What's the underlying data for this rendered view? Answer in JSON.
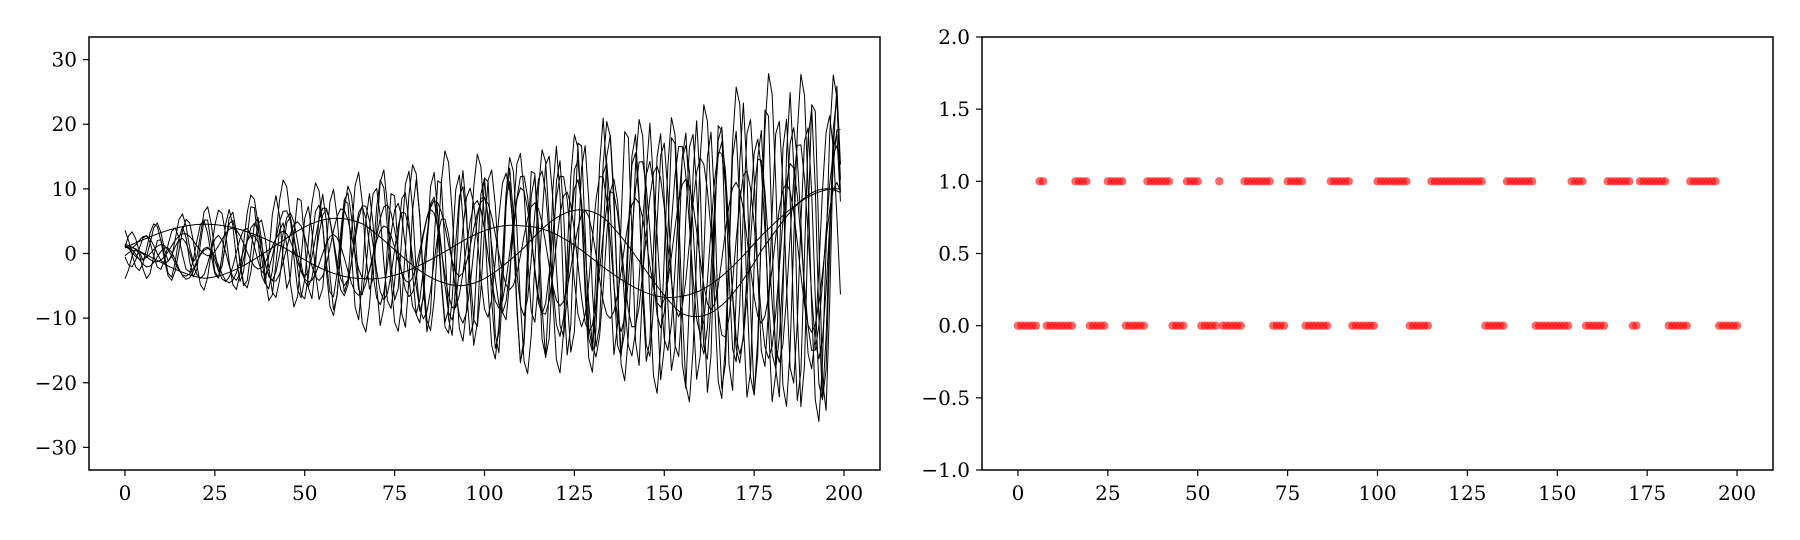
{
  "chart_data": [
    {
      "type": "line",
      "title": "",
      "xlabel": "",
      "ylabel": "",
      "xlim": [
        -10,
        210
      ],
      "ylim": [
        -33.5,
        33.5
      ],
      "xticks": [
        0,
        25,
        50,
        75,
        100,
        125,
        150,
        175,
        200
      ],
      "yticks": [
        30,
        20,
        10,
        0,
        -10,
        -20,
        -30
      ],
      "x_start": 0,
      "x_end": 199,
      "line_color": "#000000",
      "grid": false,
      "series": [
        {
          "amplitude_start": 2,
          "amplitude_end": 24,
          "period": 7.0,
          "phase": 0.0,
          "drift": [
            1,
            3,
            -2,
            4,
            1,
            -3,
            2,
            0,
            -2,
            1
          ]
        },
        {
          "amplitude_start": 1,
          "amplitude_end": 18,
          "period": 11.0,
          "phase": 1.3,
          "drift": [
            0,
            -2,
            2,
            1,
            -3,
            2,
            0,
            3,
            -1,
            2
          ]
        },
        {
          "amplitude_start": 3,
          "amplitude_end": 28,
          "period": 9.0,
          "phase": 2.1,
          "drift": [
            1,
            0,
            3,
            -1,
            2,
            -2,
            1,
            -1,
            3,
            0
          ]
        },
        {
          "amplitude_start": 1,
          "amplitude_end": 12,
          "period": 14.0,
          "phase": 0.7,
          "drift": [
            -1,
            2,
            0,
            -2,
            3,
            1,
            -2,
            2,
            0,
            -1
          ]
        },
        {
          "amplitude_start": 2,
          "amplitude_end": 22,
          "period": 8.0,
          "phase": 3.4,
          "drift": [
            0,
            1,
            -1,
            2,
            -2,
            3,
            -1,
            1,
            2,
            -3
          ]
        },
        {
          "amplitude_start": 1,
          "amplitude_end": 20,
          "period": 10.0,
          "phase": 4.2,
          "drift": [
            2,
            -1,
            1,
            0,
            -1,
            2,
            -3,
            1,
            0,
            2
          ]
        },
        {
          "amplitude_start": 2,
          "amplitude_end": 26,
          "period": 6.5,
          "phase": 5.0,
          "drift": [
            -2,
            1,
            2,
            -1,
            0,
            -2,
            3,
            -1,
            1,
            0
          ]
        },
        {
          "amplitude_start": 1,
          "amplitude_end": 16,
          "period": 12.5,
          "phase": 2.7,
          "drift": [
            1,
            -2,
            0,
            2,
            -1,
            1,
            -2,
            3,
            -2,
            1
          ]
        },
        {
          "amplitude_start": 3,
          "amplitude_end": 9,
          "period": 90.0,
          "phase": 0.3,
          "drift": [
            0,
            1,
            2,
            1,
            -1,
            -2,
            -1,
            1,
            2,
            1
          ]
        },
        {
          "amplitude_start": 2,
          "amplitude_end": 10,
          "period": 70.0,
          "phase": 2.9,
          "drift": [
            1,
            -1,
            0,
            2,
            1,
            -1,
            0,
            -2,
            1,
            0
          ]
        }
      ]
    },
    {
      "type": "scatter",
      "title": "",
      "xlabel": "",
      "ylabel": "",
      "xlim": [
        -10,
        210
      ],
      "ylim": [
        -1.0,
        2.0
      ],
      "xticks": [
        0,
        25,
        50,
        75,
        100,
        125,
        150,
        175,
        200
      ],
      "yticks": [
        2.0,
        1.5,
        1.0,
        0.5,
        0.0,
        -0.5,
        -1.0
      ],
      "ytick_labels": [
        "2.0",
        "1.5",
        "1.0",
        "0.5",
        "0.0",
        "−0.5",
        "−1.0"
      ],
      "marker_color": "#ff0000",
      "marker_alpha": 0.6,
      "grid": false,
      "runs": [
        {
          "y": 0,
          "x0": 0,
          "x1": 5
        },
        {
          "y": 1,
          "x0": 6,
          "x1": 7
        },
        {
          "y": 0,
          "x0": 8,
          "x1": 15
        },
        {
          "y": 1,
          "x0": 16,
          "x1": 19
        },
        {
          "y": 0,
          "x0": 20,
          "x1": 24
        },
        {
          "y": 1,
          "x0": 25,
          "x1": 29
        },
        {
          "y": 0,
          "x0": 30,
          "x1": 35
        },
        {
          "y": 1,
          "x0": 36,
          "x1": 42
        },
        {
          "y": 0,
          "x0": 43,
          "x1": 46
        },
        {
          "y": 1,
          "x0": 47,
          "x1": 50
        },
        {
          "y": 0,
          "x0": 51,
          "x1": 55
        },
        {
          "y": 1,
          "x0": 56,
          "x1": 56
        },
        {
          "y": 0,
          "x0": 57,
          "x1": 62
        },
        {
          "y": 1,
          "x0": 63,
          "x1": 70
        },
        {
          "y": 0,
          "x0": 71,
          "x1": 74
        },
        {
          "y": 1,
          "x0": 75,
          "x1": 79
        },
        {
          "y": 0,
          "x0": 80,
          "x1": 86
        },
        {
          "y": 1,
          "x0": 87,
          "x1": 92
        },
        {
          "y": 0,
          "x0": 93,
          "x1": 99
        },
        {
          "y": 1,
          "x0": 100,
          "x1": 108
        },
        {
          "y": 0,
          "x0": 109,
          "x1": 114
        },
        {
          "y": 1,
          "x0": 115,
          "x1": 129
        },
        {
          "y": 0,
          "x0": 130,
          "x1": 135
        },
        {
          "y": 1,
          "x0": 136,
          "x1": 143
        },
        {
          "y": 0,
          "x0": 144,
          "x1": 153
        },
        {
          "y": 1,
          "x0": 154,
          "x1": 157
        },
        {
          "y": 0,
          "x0": 158,
          "x1": 163
        },
        {
          "y": 1,
          "x0": 164,
          "x1": 170
        },
        {
          "y": 0,
          "x0": 171,
          "x1": 172
        },
        {
          "y": 1,
          "x0": 173,
          "x1": 180
        },
        {
          "y": 0,
          "x0": 181,
          "x1": 186
        },
        {
          "y": 1,
          "x0": 187,
          "x1": 194
        },
        {
          "y": 0,
          "x0": 195,
          "x1": 200
        }
      ]
    }
  ]
}
